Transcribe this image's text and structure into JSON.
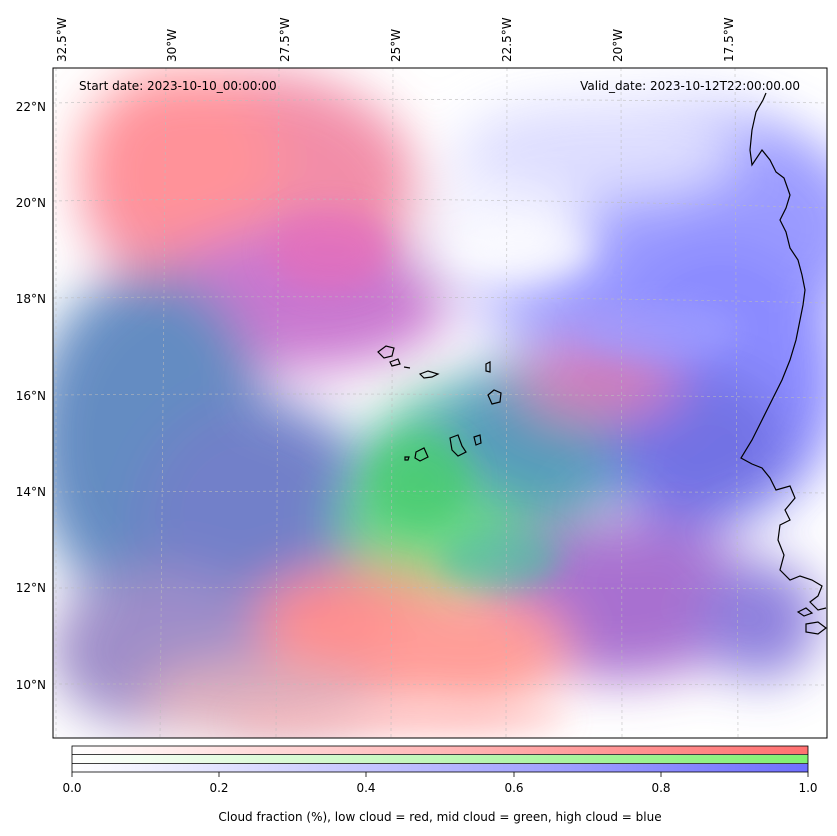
{
  "map": {
    "start_date": "Start date: 2023-10-10_00:00:00",
    "valid_date": "Valid_date: 2023-10-12T22:00:00.00",
    "lon_labels": [
      "32.5°W",
      "30°W",
      "27.5°W",
      "25°W",
      "22.5°W",
      "20°W",
      "17.5°W"
    ],
    "lat_labels": [
      "22°N",
      "20°N",
      "18°N",
      "16°N",
      "14°N",
      "12°N",
      "10°N"
    ],
    "colors": {
      "low_cloud": "#ff6b6b",
      "mid_cloud": "#55e06a",
      "high_cloud": "#6b6bff",
      "coastline": "#000000"
    }
  },
  "colorbar": {
    "ticks": [
      "0.0",
      "0.2",
      "0.4",
      "0.6",
      "0.8",
      "1.0"
    ],
    "label": "Cloud fraction (%), low cloud = red, mid cloud = green, high cloud = blue",
    "bars": [
      {
        "name": "low",
        "from": "#ffffff",
        "to": "#ff7070"
      },
      {
        "name": "mid",
        "from": "#ffffff",
        "to": "#80f070"
      },
      {
        "name": "high",
        "from": "#ffffff",
        "to": "#6f6fff"
      }
    ]
  }
}
